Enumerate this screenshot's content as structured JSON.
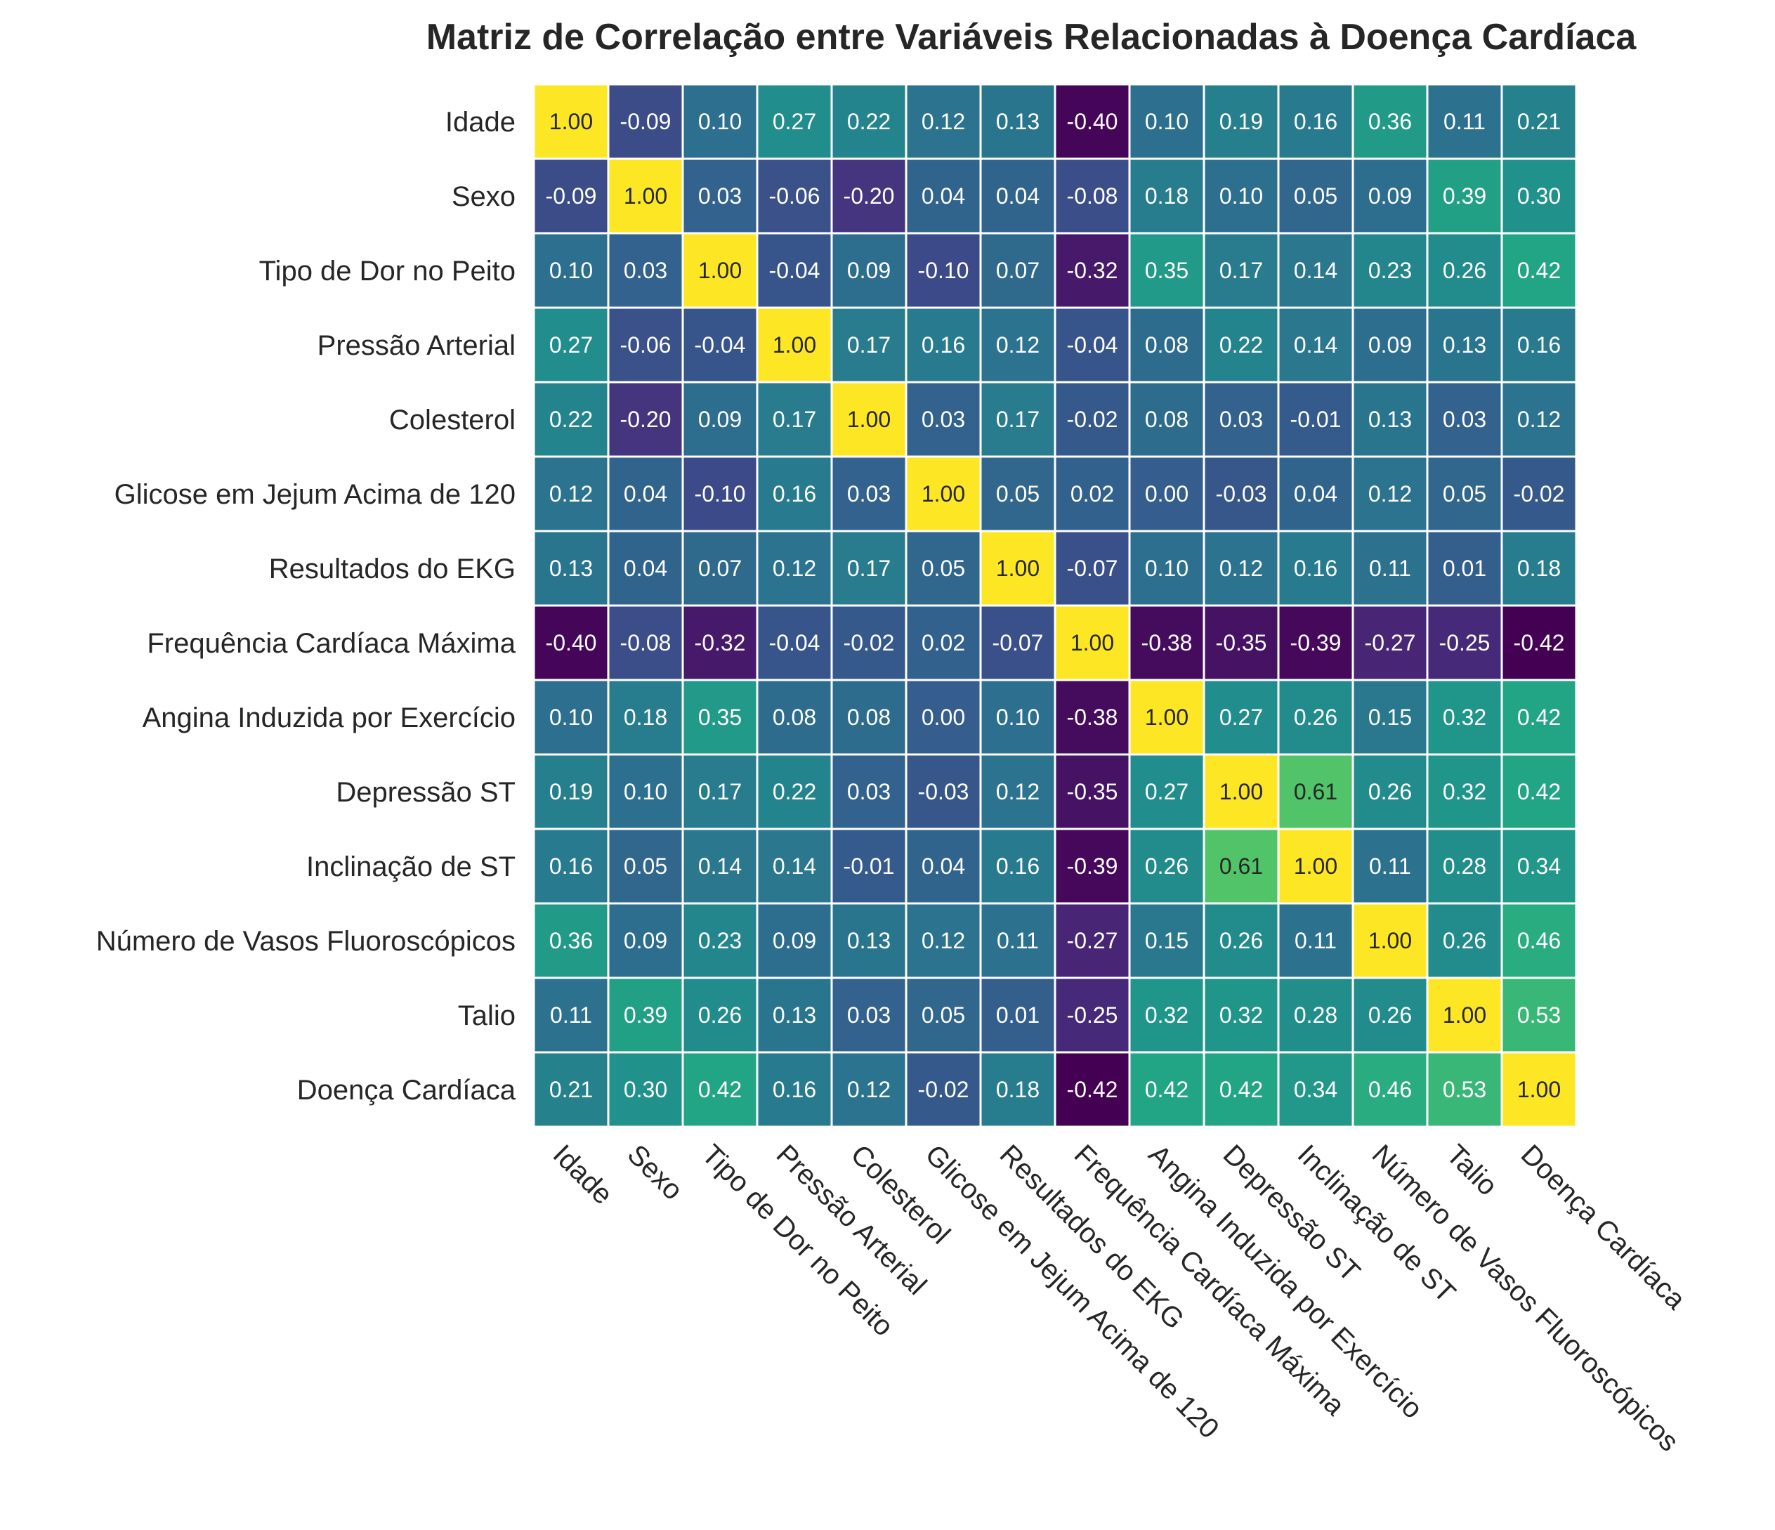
{
  "chart_data": {
    "type": "heatmap",
    "title": "Matriz de Correlação entre Variáveis Relacionadas à Doença Cardíaca",
    "xlabel": "",
    "ylabel": "",
    "colormap": "viridis",
    "value_range": [
      -0.42,
      1.0
    ],
    "annotation_format": "2 decimals",
    "grid": false,
    "cell_gap_color": "#ffffff",
    "x_tick_rotation_deg": -45,
    "variables": [
      "Idade",
      "Sexo",
      "Tipo de Dor no Peito",
      "Pressão Arterial",
      "Colesterol",
      "Glicose em Jejum Acima de 120",
      "Resultados do EKG",
      "Frequência Cardíaca Máxima",
      "Angina Induzida por Exercício",
      "Depressão ST",
      "Inclinação de ST",
      "Número de Vasos Fluoroscópicos",
      "Talio",
      "Doença Cardíaca"
    ],
    "matrix": [
      [
        1.0,
        -0.09,
        0.1,
        0.27,
        0.22,
        0.12,
        0.13,
        -0.4,
        0.1,
        0.19,
        0.16,
        0.36,
        0.11,
        0.21
      ],
      [
        -0.09,
        1.0,
        0.03,
        -0.06,
        -0.2,
        0.04,
        0.04,
        -0.08,
        0.18,
        0.1,
        0.05,
        0.09,
        0.39,
        0.3
      ],
      [
        0.1,
        0.03,
        1.0,
        -0.04,
        0.09,
        -0.1,
        0.07,
        -0.32,
        0.35,
        0.17,
        0.14,
        0.23,
        0.26,
        0.42
      ],
      [
        0.27,
        -0.06,
        -0.04,
        1.0,
        0.17,
        0.16,
        0.12,
        -0.04,
        0.08,
        0.22,
        0.14,
        0.09,
        0.13,
        0.16
      ],
      [
        0.22,
        -0.2,
        0.09,
        0.17,
        1.0,
        0.03,
        0.17,
        -0.02,
        0.08,
        0.03,
        -0.01,
        0.13,
        0.03,
        0.12
      ],
      [
        0.12,
        0.04,
        -0.1,
        0.16,
        0.03,
        1.0,
        0.05,
        0.02,
        -0.0,
        -0.03,
        0.04,
        0.12,
        0.05,
        -0.02
      ],
      [
        0.13,
        0.04,
        0.07,
        0.12,
        0.17,
        0.05,
        1.0,
        -0.07,
        0.1,
        0.12,
        0.16,
        0.11,
        0.01,
        0.18
      ],
      [
        -0.4,
        -0.08,
        -0.32,
        -0.04,
        -0.02,
        0.02,
        -0.07,
        1.0,
        -0.38,
        -0.35,
        -0.39,
        -0.27,
        -0.25,
        -0.42
      ],
      [
        0.1,
        0.18,
        0.35,
        0.08,
        0.08,
        -0.0,
        0.1,
        -0.38,
        1.0,
        0.27,
        0.26,
        0.15,
        0.32,
        0.42
      ],
      [
        0.19,
        0.1,
        0.17,
        0.22,
        0.03,
        -0.03,
        0.12,
        -0.35,
        0.27,
        1.0,
        0.61,
        0.26,
        0.32,
        0.42
      ],
      [
        0.16,
        0.05,
        0.14,
        0.14,
        -0.01,
        0.04,
        0.16,
        -0.39,
        0.26,
        0.61,
        1.0,
        0.11,
        0.28,
        0.34
      ],
      [
        0.36,
        0.09,
        0.23,
        0.09,
        0.13,
        0.12,
        0.11,
        -0.27,
        0.15,
        0.26,
        0.11,
        1.0,
        0.26,
        0.46
      ],
      [
        0.11,
        0.39,
        0.26,
        0.13,
        0.03,
        0.05,
        0.01,
        -0.25,
        0.32,
        0.32,
        0.28,
        0.26,
        1.0,
        0.53
      ],
      [
        0.21,
        0.3,
        0.42,
        0.16,
        0.12,
        -0.02,
        0.18,
        -0.42,
        0.42,
        0.42,
        0.34,
        0.46,
        0.53,
        1.0
      ]
    ]
  }
}
